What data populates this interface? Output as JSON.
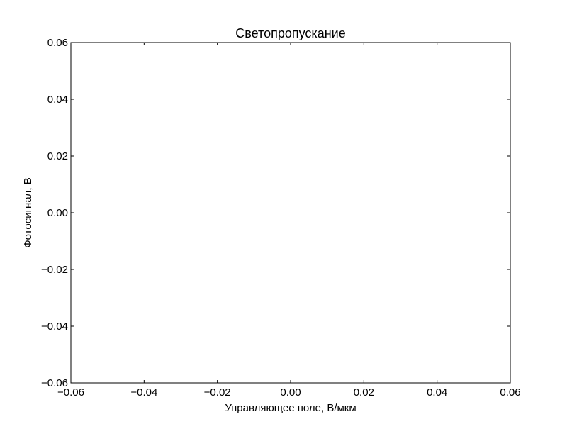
{
  "chart_data": {
    "type": "line",
    "title": "Светопропускание",
    "xlabel": "Управляющее поле, В/мкм",
    "ylabel": "Фотосигнал, В",
    "xlim": [
      -0.06,
      0.06
    ],
    "ylim": [
      -0.06,
      0.06
    ],
    "xticks": [
      -0.06,
      -0.04,
      -0.02,
      0.0,
      0.02,
      0.04,
      0.06
    ],
    "xtick_labels": [
      "−0.06",
      "−0.04",
      "−0.02",
      "0.00",
      "0.02",
      "0.04",
      "0.06"
    ],
    "yticks": [
      0.06,
      0.04,
      0.02,
      0.0,
      -0.02,
      -0.04,
      -0.06
    ],
    "ytick_labels": [
      "0.06",
      "0.04",
      "0.02",
      "0.00",
      "−0.02",
      "−0.04",
      "−0.06"
    ],
    "series": [],
    "grid": false,
    "legend": null
  }
}
